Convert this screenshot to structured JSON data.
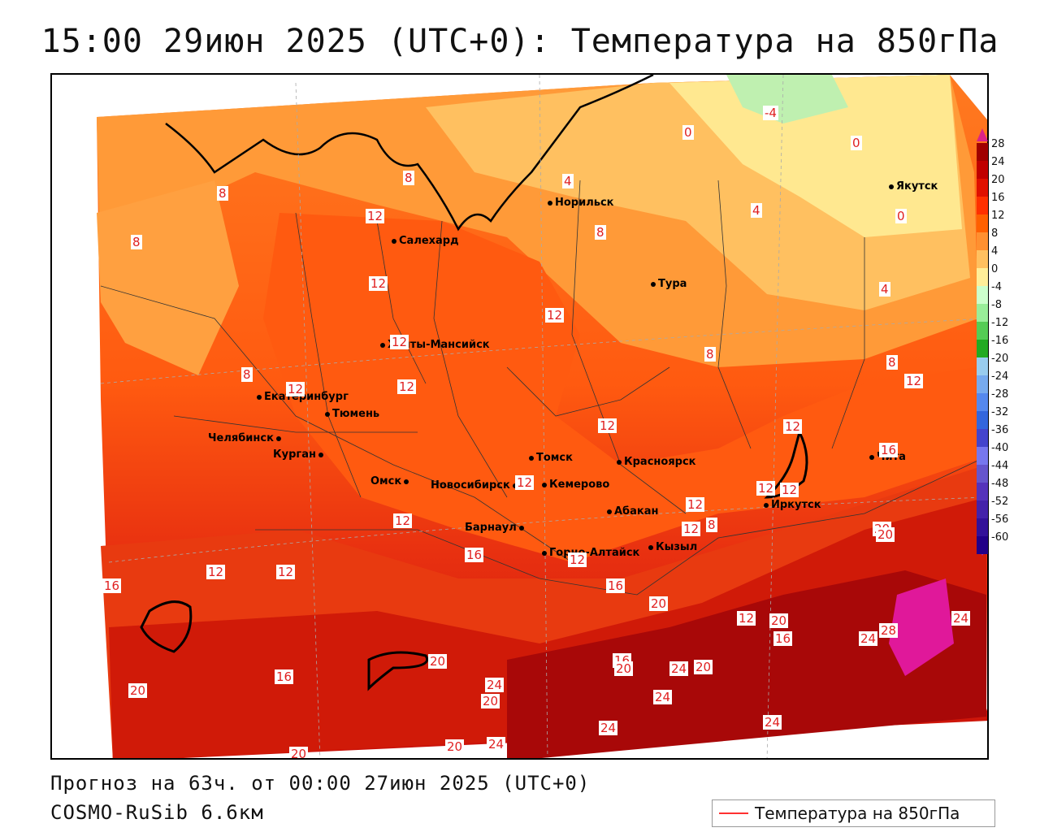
{
  "title": "15:00 29июн 2025 (UTC+0): Температура на 850гПа",
  "forecast_line": "Прогноз на 63ч. от 00:00 27июн 2025 (UTC+0)",
  "model_line": "COSMO-RuSib 6.6км",
  "legend": {
    "line_label": "Температура на 850гПа",
    "line_color": "#ff3030"
  },
  "colorbar": {
    "ticks": [
      "28",
      "24",
      "20",
      "16",
      "12",
      "8",
      "4",
      "0",
      "-4",
      "-8",
      "-12",
      "-16",
      "-20",
      "-24",
      "-28",
      "-32",
      "-36",
      "-40",
      "-44",
      "-48",
      "-52",
      "-56",
      "-60"
    ],
    "colors": [
      "#a00000",
      "#c00000",
      "#e01000",
      "#ff3000",
      "#ff6000",
      "#ff9030",
      "#ffc060",
      "#ffee99",
      "#ccffcc",
      "#99ee99",
      "#55cc55",
      "#22aa22",
      "#99ccee",
      "#77aaee",
      "#5588ee",
      "#3366dd",
      "#4444cc",
      "#7777ee",
      "#6655cc",
      "#5533bb",
      "#4422aa",
      "#331199",
      "#220088"
    ],
    "top_arrow_color": "#dd2288",
    "bottom_arrow_color": "#aa33cc"
  },
  "cities": [
    {
      "name": "Якутск"
    },
    {
      "name": "Норильск"
    },
    {
      "name": "Салехард"
    },
    {
      "name": "Тура"
    },
    {
      "name": "Ханты-Мансийск"
    },
    {
      "name": "Екатеринбург"
    },
    {
      "name": "Тюмень"
    },
    {
      "name": "Челябинск"
    },
    {
      "name": "Курган"
    },
    {
      "name": "Омск"
    },
    {
      "name": "Новосибирск"
    },
    {
      "name": "Томск"
    },
    {
      "name": "Кемерово"
    },
    {
      "name": "Красноярск"
    },
    {
      "name": "Абакан"
    },
    {
      "name": "Барнаул"
    },
    {
      "name": "Горно-Алтайск"
    },
    {
      "name": "Кызыл"
    },
    {
      "name": "Иркутск"
    },
    {
      "name": "Чита"
    }
  ],
  "contour_labels": [
    "-4",
    "0",
    "0",
    "0",
    "4",
    "4",
    "4",
    "8",
    "8",
    "8",
    "8",
    "8",
    "8",
    "8",
    "8",
    "12",
    "12",
    "12",
    "12",
    "12",
    "12",
    "12",
    "12",
    "12",
    "12",
    "12",
    "12",
    "12",
    "12",
    "12",
    "12",
    "12",
    "12",
    "12",
    "16",
    "16",
    "16",
    "16",
    "16",
    "16",
    "16",
    "20",
    "20",
    "20",
    "20",
    "20",
    "20",
    "20",
    "20",
    "20",
    "20",
    "20",
    "24",
    "24",
    "24",
    "24",
    "24",
    "24",
    "24",
    "24",
    "28"
  ]
}
